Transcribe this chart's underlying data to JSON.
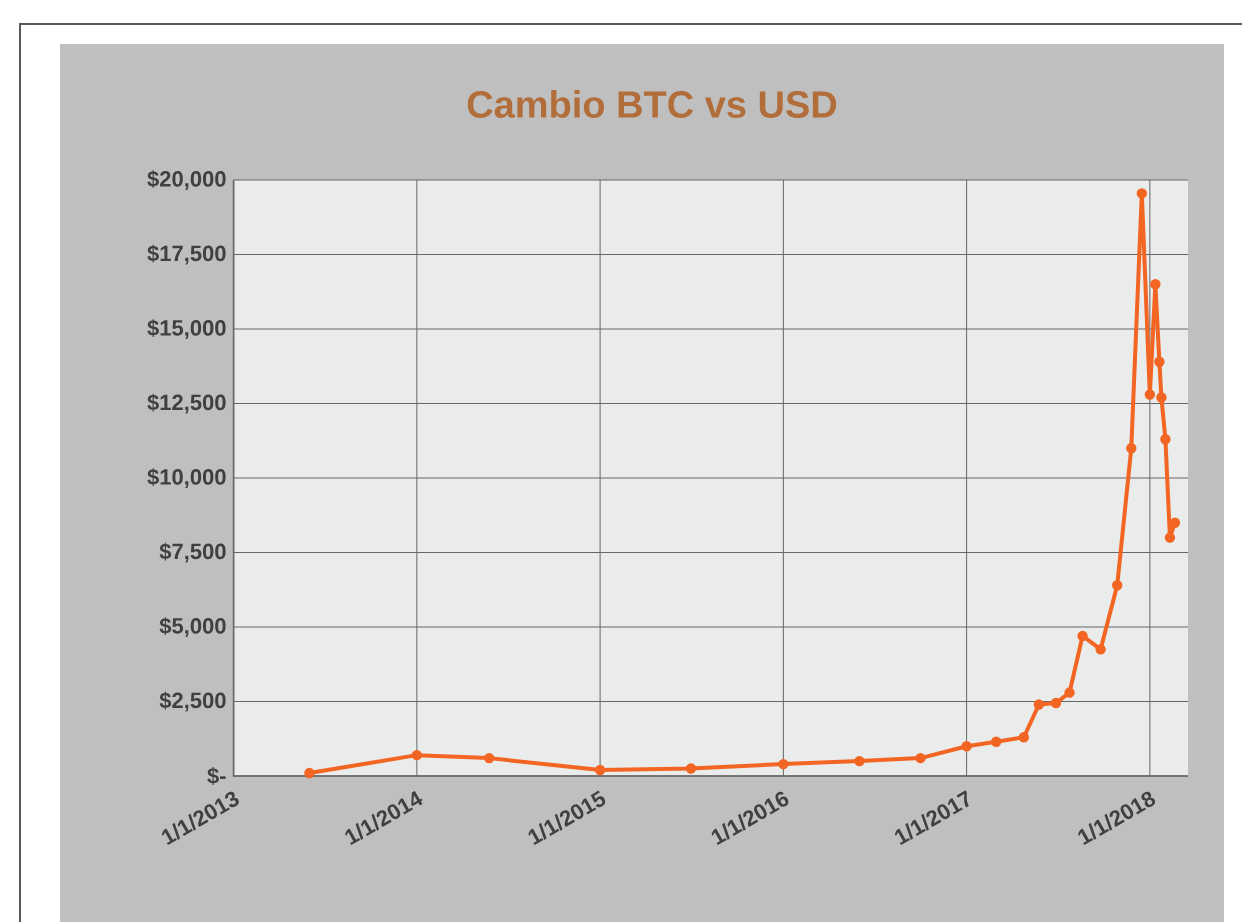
{
  "chart_data": {
    "type": "line",
    "title": "Cambio BTC vs USD",
    "x": [
      "2013-06-01",
      "2014-01-01",
      "2014-05-25",
      "2015-01-01",
      "2015-07-01",
      "2016-01-01",
      "2016-06-01",
      "2016-10-01",
      "2017-01-01",
      "2017-03-01",
      "2017-04-25",
      "2017-05-25",
      "2017-06-28",
      "2017-07-25",
      "2017-08-20",
      "2017-09-25",
      "2017-10-28",
      "2017-11-25",
      "2017-12-16",
      "2018-01-01",
      "2018-01-12",
      "2018-01-20",
      "2018-01-24",
      "2018-02-01",
      "2018-02-10",
      "2018-02-20"
    ],
    "series": [
      {
        "color": "#f26522",
        "values": [
          100,
          700,
          600,
          200,
          250,
          400,
          500,
          600,
          1000,
          1150,
          1300,
          2400,
          2450,
          2800,
          4700,
          4250,
          6400,
          11000,
          19550,
          12800,
          16500,
          13900,
          12700,
          11300,
          8000,
          8500
        ]
      }
    ],
    "xlim": [
      "2013-01-01",
      "2018-03-18"
    ],
    "xticks": [
      {
        "value": "2013-01-01",
        "label": "1/1/2013"
      },
      {
        "value": "2014-01-01",
        "label": "1/1/2014"
      },
      {
        "value": "2015-01-01",
        "label": "1/1/2015"
      },
      {
        "value": "2016-01-01",
        "label": "1/1/2016"
      },
      {
        "value": "2017-01-01",
        "label": "1/1/2017"
      },
      {
        "value": "2018-01-01",
        "label": "1/1/2018"
      }
    ],
    "ylim": [
      0,
      20000
    ],
    "yticks": [
      {
        "value": 0,
        "label": "$-"
      },
      {
        "value": 2500,
        "label": "$2,500"
      },
      {
        "value": 5000,
        "label": "$5,000"
      },
      {
        "value": 7500,
        "label": "$7,500"
      },
      {
        "value": 10000,
        "label": "$10,000"
      },
      {
        "value": 12500,
        "label": "$12,500"
      },
      {
        "value": 15000,
        "label": "$15,000"
      },
      {
        "value": 17500,
        "label": "$17,500"
      },
      {
        "value": 20000,
        "label": "$20,000"
      }
    ],
    "grid": true,
    "marker": "circle",
    "line_style": "solid"
  }
}
